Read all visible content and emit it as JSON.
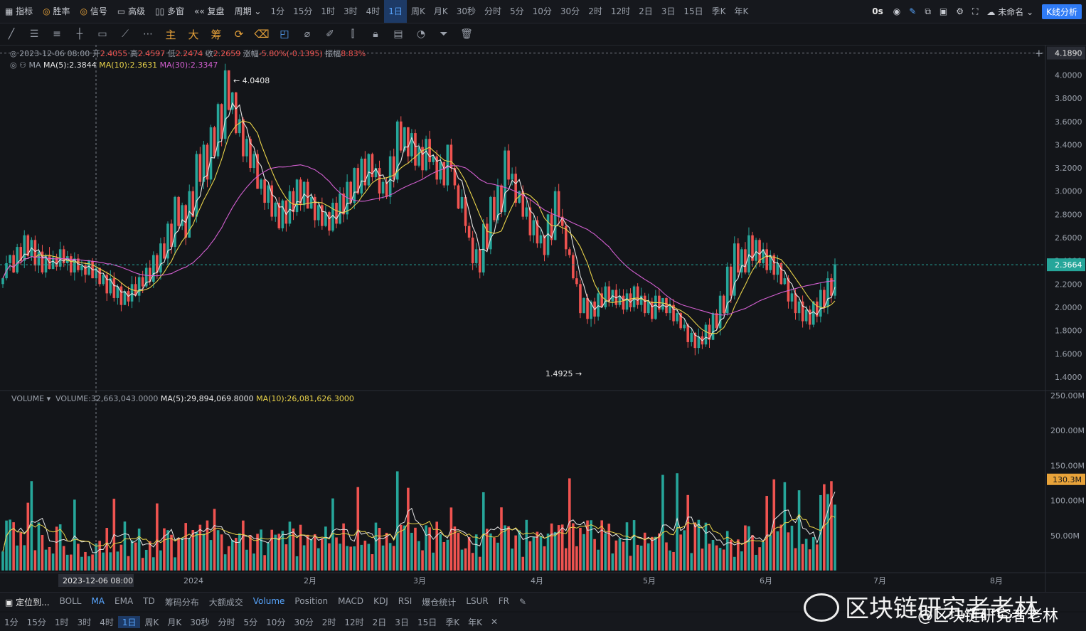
{
  "topbar": {
    "left_items": [
      "指标",
      "胜率",
      "信号",
      "高级",
      "多窗",
      "复盘",
      "周期"
    ],
    "periods": [
      "1分",
      "15分",
      "1时",
      "3时",
      "4时",
      "1日",
      "周K",
      "月K",
      "30秒",
      "分时",
      "5分",
      "10分",
      "30分",
      "2时",
      "12时",
      "2日",
      "3日",
      "15日",
      "季K",
      "年K"
    ],
    "active_period": "1日",
    "countdown": "0s",
    "workspace": "未命名",
    "kline_button": "K线分析"
  },
  "toolbar": {
    "o1": "主",
    "o2": "大",
    "o3": "筹"
  },
  "legend": {
    "date": "2023-12-06 08:00",
    "open_label": "开",
    "open": "2.4055",
    "high_label": "高",
    "high": "2.4597",
    "low_label": "低",
    "low": "2.2474",
    "close_label": "收",
    "close": "2.2659",
    "change_label": "涨幅",
    "change": "-5.80%(-0.1395)",
    "amp_label": "振幅",
    "amp": "8.83%",
    "ma_name": "MA",
    "ma5": "MA(5):2.3844",
    "ma10": "MA(10):2.3631",
    "ma30": "MA(30):2.3347"
  },
  "volume_legend": {
    "name": "VOLUME",
    "vol": "VOLUME:32,663,043.0000",
    "ma5": "MA(5):29,894,069.8000",
    "ma10": "MA(10):26,081,626.3000"
  },
  "colors": {
    "up": "#ef5350",
    "down": "#26a69a",
    "ma5": "#e6e6e6",
    "ma10": "#e8d24a",
    "ma30": "#d25fd0",
    "price": "#26a69a",
    "accent": "#2f7bf6"
  },
  "chart_data": {
    "type": "candlestick",
    "price_axis": {
      "ticks": [
        4.0,
        3.8,
        3.6,
        3.4,
        3.2,
        3.0,
        2.8,
        2.6,
        2.4,
        2.2,
        2.0,
        1.8,
        1.6,
        1.4
      ],
      "range": [
        1.32,
        4.26
      ]
    },
    "current_price": "2.3664",
    "crosshair_price": "4.1890",
    "crosshair_date": "2023-12-06 08:00",
    "high_marker": "4.0408",
    "low_marker": "1.4925",
    "x_ticks": [
      "2024",
      "2月",
      "3月",
      "4月",
      "5月",
      "6月",
      "7月",
      "8月"
    ],
    "volume_axis": {
      "ticks": [
        "250.00M",
        "200.00M",
        "150.00M",
        "100.00M",
        "50.00M"
      ],
      "range": [
        0,
        250
      ]
    },
    "current_volume": "130.3M",
    "price_path": [
      2.25,
      2.38,
      2.45,
      2.3,
      2.52,
      2.4,
      2.62,
      2.44,
      2.58,
      2.36,
      2.48,
      2.3,
      2.45,
      2.33,
      2.43,
      2.35,
      2.5,
      2.38,
      2.44,
      2.3,
      2.42,
      2.32,
      2.36,
      2.28,
      2.4,
      2.25,
      2.34,
      2.2,
      2.28,
      2.12,
      2.25,
      2.08,
      2.18,
      2.02,
      2.14,
      2.05,
      2.2,
      2.1,
      2.26,
      2.18,
      2.34,
      2.22,
      2.45,
      2.3,
      2.55,
      2.42,
      2.72,
      2.52,
      2.95,
      2.7,
      2.88,
      2.6,
      3.0,
      2.78,
      3.32,
      3.08,
      3.4,
      3.1,
      3.55,
      3.3,
      3.75,
      3.45,
      4.04,
      3.7,
      3.85,
      3.5,
      3.62,
      3.3,
      3.45,
      3.2,
      3.32,
      3.02,
      3.1,
      2.9,
      3.05,
      2.78,
      2.9,
      2.68,
      2.92,
      2.72,
      3.0,
      2.82,
      3.1,
      2.88,
      3.08,
      2.85,
      2.95,
      2.75,
      2.88,
      2.7,
      2.82,
      2.66,
      2.9,
      2.72,
      2.98,
      2.8,
      3.08,
      2.9,
      3.2,
      2.98,
      3.28,
      3.05,
      3.32,
      3.12,
      3.2,
      2.98,
      3.08,
      2.95,
      3.3,
      3.1,
      3.6,
      3.35,
      3.55,
      3.3,
      3.5,
      3.22,
      3.38,
      3.18,
      3.45,
      3.25,
      3.3,
      3.1,
      3.25,
      3.05,
      3.4,
      3.2,
      3.05,
      2.85,
      2.95,
      2.7,
      2.6,
      2.38,
      2.5,
      2.3,
      2.72,
      2.5,
      2.95,
      2.75,
      3.05,
      2.82,
      3.35,
      3.1,
      3.15,
      2.9,
      3.0,
      2.78,
      2.86,
      2.62,
      2.75,
      2.55,
      2.62,
      2.45,
      2.8,
      2.58,
      3.0,
      2.78,
      2.7,
      2.5,
      2.45,
      2.25,
      2.2,
      1.95,
      2.08,
      1.9,
      2.05,
      1.92,
      2.12,
      2.0,
      2.18,
      2.05,
      2.15,
      2.02,
      2.1,
      1.98,
      2.12,
      2.0,
      2.18,
      2.02,
      2.1,
      1.95,
      2.05,
      1.9,
      2.1,
      1.98,
      2.08,
      1.95,
      2.02,
      1.88,
      1.95,
      1.82,
      1.85,
      1.7,
      1.78,
      1.65,
      1.75,
      1.68,
      1.85,
      1.72,
      1.95,
      1.82,
      2.1,
      1.95,
      2.35,
      2.1,
      2.55,
      2.3,
      2.5,
      2.3,
      2.62,
      2.4,
      2.58,
      2.38,
      2.5,
      2.32,
      2.45,
      2.28,
      2.38,
      2.2,
      2.25,
      2.05,
      2.12,
      1.95,
      2.05,
      1.88,
      1.98,
      1.85,
      2.05,
      1.92,
      2.15,
      2.0,
      2.25,
      2.1,
      2.37
    ]
  },
  "bottom": {
    "locate": "定位到...",
    "indicators": [
      "BOLL",
      "MA",
      "EMA",
      "TD",
      "筹码分布",
      "大额成交",
      "Volume",
      "Position",
      "MACD",
      "KDJ",
      "RSI",
      "爆仓统计",
      "LSUR",
      "FR"
    ],
    "periods": [
      "1分",
      "15分",
      "1时",
      "3时",
      "4时",
      "1日",
      "周K",
      "月K",
      "30秒",
      "分时",
      "5分",
      "10分",
      "30分",
      "2时",
      "12时",
      "2日",
      "3日",
      "15日",
      "季K",
      "年K"
    ],
    "active_period": "1日"
  },
  "watermark": {
    "text": "区块链研究者老林",
    "sub": "@区块链研究者老林"
  }
}
